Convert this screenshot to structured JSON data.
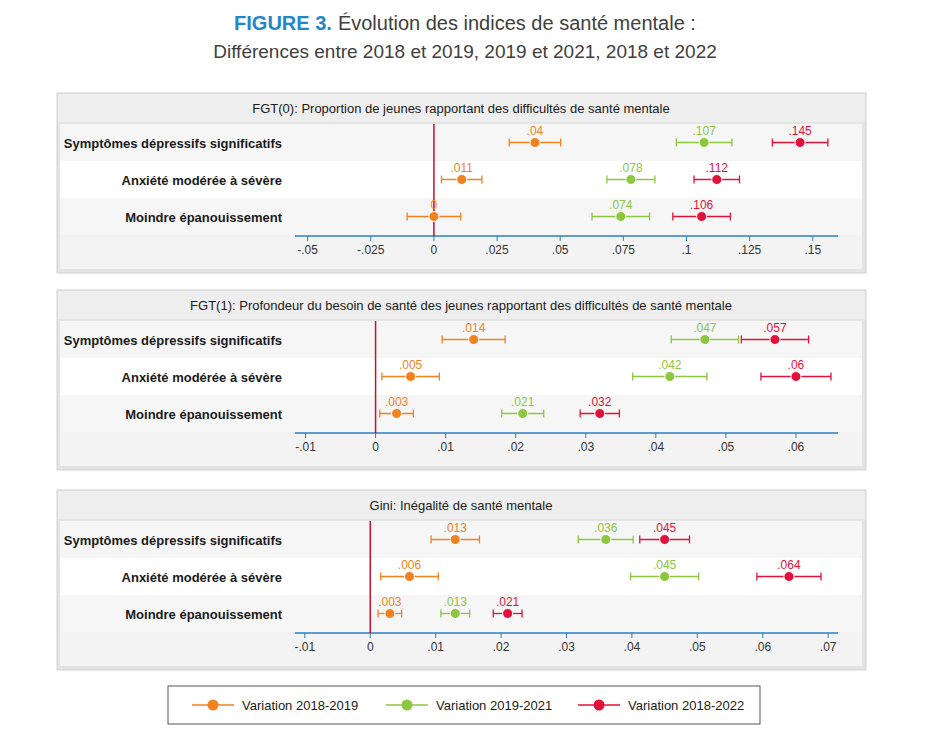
{
  "header": {
    "label": "FIGURE 3.",
    "title": "Évolution des indices de santé mentale :",
    "subtitle": "Différences entre 2018 et 2019, 2019 et 2021, 2018 et 2022"
  },
  "chart_data": [
    {
      "type": "dot",
      "orientation": "horizontal",
      "title": "FGT(0): Proportion de jeunes rapportant des difficultés de santé mentale",
      "categories": [
        "Symptômes dépressifs significatifs",
        "Anxiété modérée à sévère",
        "Moindre épanouissement"
      ],
      "xlim": [
        -0.055,
        0.16
      ],
      "xticks": [
        {
          "value": -0.05,
          "label": "-.05"
        },
        {
          "value": -0.025,
          "label": "-.025"
        },
        0,
        {
          "value": 0.025,
          "label": ".025"
        },
        {
          "value": 0.05,
          "label": ".05"
        },
        {
          "value": 0.075,
          "label": ".075"
        },
        {
          "value": 0.1,
          "label": ".1"
        },
        {
          "value": 0.125,
          "label": ".125"
        },
        {
          "value": 0.15,
          "label": ".15"
        }
      ],
      "reference_line": 0,
      "grid": false,
      "data_labels": true,
      "series": [
        {
          "name": "Variation 2018-2019",
          "color": "#f08220",
          "values": [
            0.04,
            0.011,
            0
          ],
          "value_labels": [
            ".04",
            ".011",
            "0"
          ],
          "errors": [
            0.0102,
            0.008,
            0.0106
          ]
        },
        {
          "name": "Variation 2019-2021",
          "color": "#8dc63f",
          "values": [
            0.107,
            0.078,
            0.074
          ],
          "value_labels": [
            ".107",
            ".078",
            ".074"
          ],
          "errors": [
            0.011,
            0.0095,
            0.0114
          ]
        },
        {
          "name": "Variation 2018-2022",
          "color": "#e0123c",
          "values": [
            0.145,
            0.112,
            0.106
          ],
          "value_labels": [
            ".145",
            ".112",
            ".106"
          ],
          "errors": [
            0.011,
            0.009,
            0.0114
          ]
        }
      ]
    },
    {
      "type": "dot",
      "orientation": "horizontal",
      "title": "FGT(1): Profondeur du besoin de santé des jeunes rapportant des difficultés de santé mentale",
      "categories": [
        "Symptômes dépressifs significatifs",
        "Anxiété modérée à sévère",
        "Moindre épanouissement"
      ],
      "xlim": [
        -0.0115,
        0.066
      ],
      "xticks": [
        {
          "value": -0.01,
          "label": "-.01"
        },
        0,
        {
          "value": 0.01,
          "label": ".01"
        },
        {
          "value": 0.02,
          "label": ".02"
        },
        {
          "value": 0.03,
          "label": ".03"
        },
        {
          "value": 0.04,
          "label": ".04"
        },
        {
          "value": 0.05,
          "label": ".05"
        },
        {
          "value": 0.06,
          "label": ".06"
        }
      ],
      "reference_line": 0,
      "grid": false,
      "data_labels": true,
      "series": [
        {
          "color": "#f08220",
          "values": [
            0.014,
            0.005,
            0.003
          ],
          "value_labels": [
            ".014",
            ".005",
            ".003"
          ],
          "errors": [
            0.0045,
            0.0041,
            0.0024
          ]
        },
        {
          "color": "#8dc63f",
          "values": [
            0.047,
            0.042,
            0.021
          ],
          "value_labels": [
            ".047",
            ".042",
            ".021"
          ],
          "errors": [
            0.0048,
            0.0053,
            0.003
          ]
        },
        {
          "color": "#e0123c",
          "values": [
            0.057,
            0.06,
            0.032
          ],
          "value_labels": [
            ".057",
            ".06",
            ".032"
          ],
          "errors": [
            0.0048,
            0.005,
            0.0028
          ]
        }
      ]
    },
    {
      "type": "dot",
      "orientation": "horizontal",
      "title": "Gini: Inégalité de santé mentale",
      "categories": [
        "Symptômes dépressifs significatifs",
        "Anxiété modérée à sévère",
        "Moindre épanouissement"
      ],
      "xlim": [
        -0.0115,
        0.0715
      ],
      "xticks": [
        {
          "value": -0.01,
          "label": "-.01"
        },
        0,
        {
          "value": 0.01,
          "label": ".01"
        },
        {
          "value": 0.02,
          "label": ".02"
        },
        {
          "value": 0.03,
          "label": ".03"
        },
        {
          "value": 0.04,
          "label": ".04"
        },
        {
          "value": 0.05,
          "label": ".05"
        },
        {
          "value": 0.06,
          "label": ".06"
        },
        {
          "value": 0.07,
          "label": ".07"
        }
      ],
      "reference_line": 0,
      "grid": false,
      "data_labels": true,
      "series": [
        {
          "color": "#f08220",
          "values": [
            0.013,
            0.006,
            0.003
          ],
          "value_labels": [
            ".013",
            ".006",
            ".003"
          ],
          "errors": [
            0.0037,
            0.0044,
            0.0018
          ]
        },
        {
          "color": "#8dc63f",
          "values": [
            0.036,
            0.045,
            0.013
          ],
          "value_labels": [
            ".036",
            ".045",
            ".013"
          ],
          "errors": [
            0.0042,
            0.0052,
            0.0022
          ]
        },
        {
          "color": "#e0123c",
          "values": [
            0.045,
            0.064,
            0.021
          ],
          "value_labels": [
            ".045",
            ".064",
            ".021"
          ],
          "errors": [
            0.0038,
            0.0049,
            0.0022
          ]
        }
      ]
    }
  ]
}
